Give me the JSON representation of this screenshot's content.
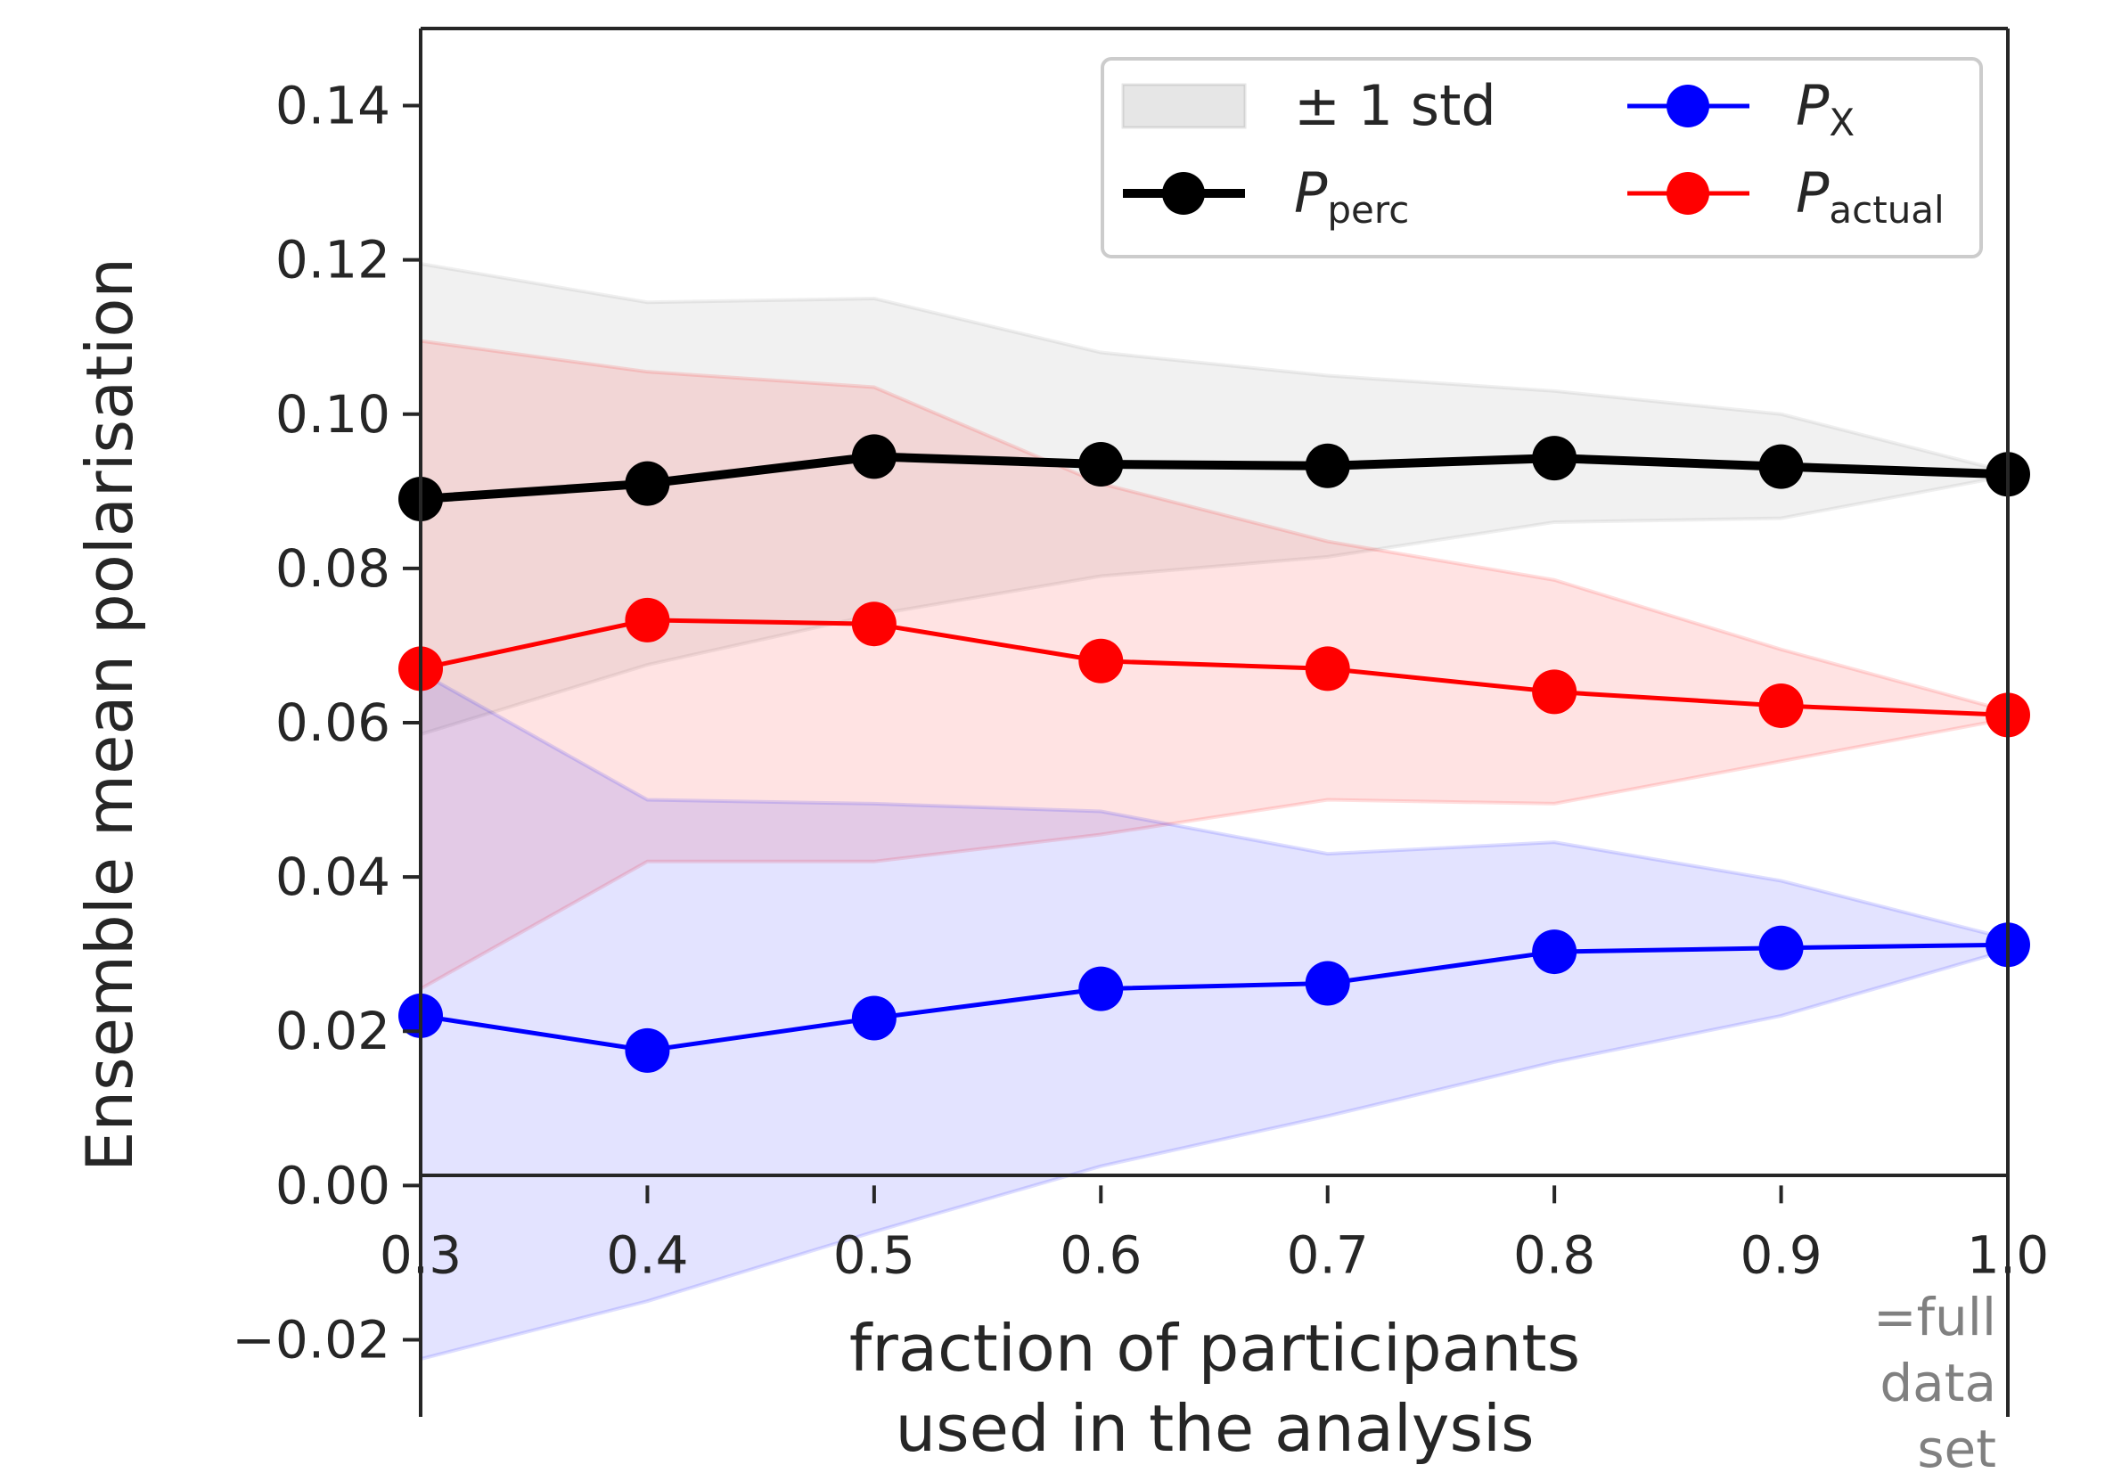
{
  "chart_data": {
    "type": "line",
    "xlabel": [
      "fraction of participants",
      "used in the analysis"
    ],
    "ylabel": "Ensemble mean polarisation",
    "xlim": [
      0.3,
      1.0
    ],
    "ylim": [
      -0.03,
      0.15
    ],
    "xticks": [
      0.3,
      0.4,
      0.5,
      0.6,
      0.7,
      0.8,
      0.9,
      1.0
    ],
    "xtick_labels": [
      "0.3",
      "0.4",
      "0.5",
      "0.6",
      "0.7",
      "0.8",
      "0.9",
      "1.0"
    ],
    "yticks": [
      -0.02,
      0.0,
      0.02,
      0.04,
      0.06,
      0.08,
      0.1,
      0.12,
      0.14
    ],
    "ytick_labels": [
      "−0.02",
      "0.00",
      "0.02",
      "0.04",
      "0.06",
      "0.08",
      "0.10",
      "0.12",
      "0.14"
    ],
    "x_annotation": [
      "=full",
      "data",
      "set"
    ],
    "grid": false,
    "legend_position": "top-right",
    "band_legend_label": "± 1 std",
    "x": [
      0.3,
      0.4,
      0.5,
      0.6,
      0.7,
      0.8,
      0.9,
      1.0
    ],
    "series": [
      {
        "key": "perc",
        "name_main": "P",
        "name_sub": "perc",
        "color": "#000000",
        "band_color": "#808080",
        "values": [
          0.089,
          0.091,
          0.0945,
          0.0935,
          0.0933,
          0.0943,
          0.0932,
          0.0922
        ],
        "upper": [
          0.1195,
          0.1145,
          0.115,
          0.108,
          0.105,
          0.103,
          0.1,
          0.0925
        ],
        "lower": [
          0.0585,
          0.0675,
          0.074,
          0.079,
          0.0815,
          0.086,
          0.0865,
          0.092
        ]
      },
      {
        "key": "x",
        "name_main": "P",
        "name_sub": "X",
        "color": "#0000ff",
        "band_color": "#0000ff",
        "values": [
          0.022,
          0.0175,
          0.0217,
          0.0255,
          0.0262,
          0.0303,
          0.0308,
          0.0312
        ],
        "upper": [
          0.0665,
          0.05,
          0.0495,
          0.0485,
          0.043,
          0.0445,
          0.0395,
          0.032
        ],
        "lower": [
          -0.0225,
          -0.015,
          -0.006,
          0.0025,
          0.009,
          0.016,
          0.022,
          0.0305
        ]
      },
      {
        "key": "actual",
        "name_main": "P",
        "name_sub": "actual",
        "color": "#ff0000",
        "band_color": "#ff0000",
        "values": [
          0.067,
          0.0733,
          0.0728,
          0.068,
          0.067,
          0.064,
          0.0622,
          0.061
        ],
        "upper": [
          0.1095,
          0.1055,
          0.1035,
          0.091,
          0.0835,
          0.0785,
          0.0695,
          0.0615
        ],
        "lower": [
          0.0255,
          0.042,
          0.042,
          0.0455,
          0.05,
          0.0495,
          0.055,
          0.0605
        ]
      }
    ]
  }
}
